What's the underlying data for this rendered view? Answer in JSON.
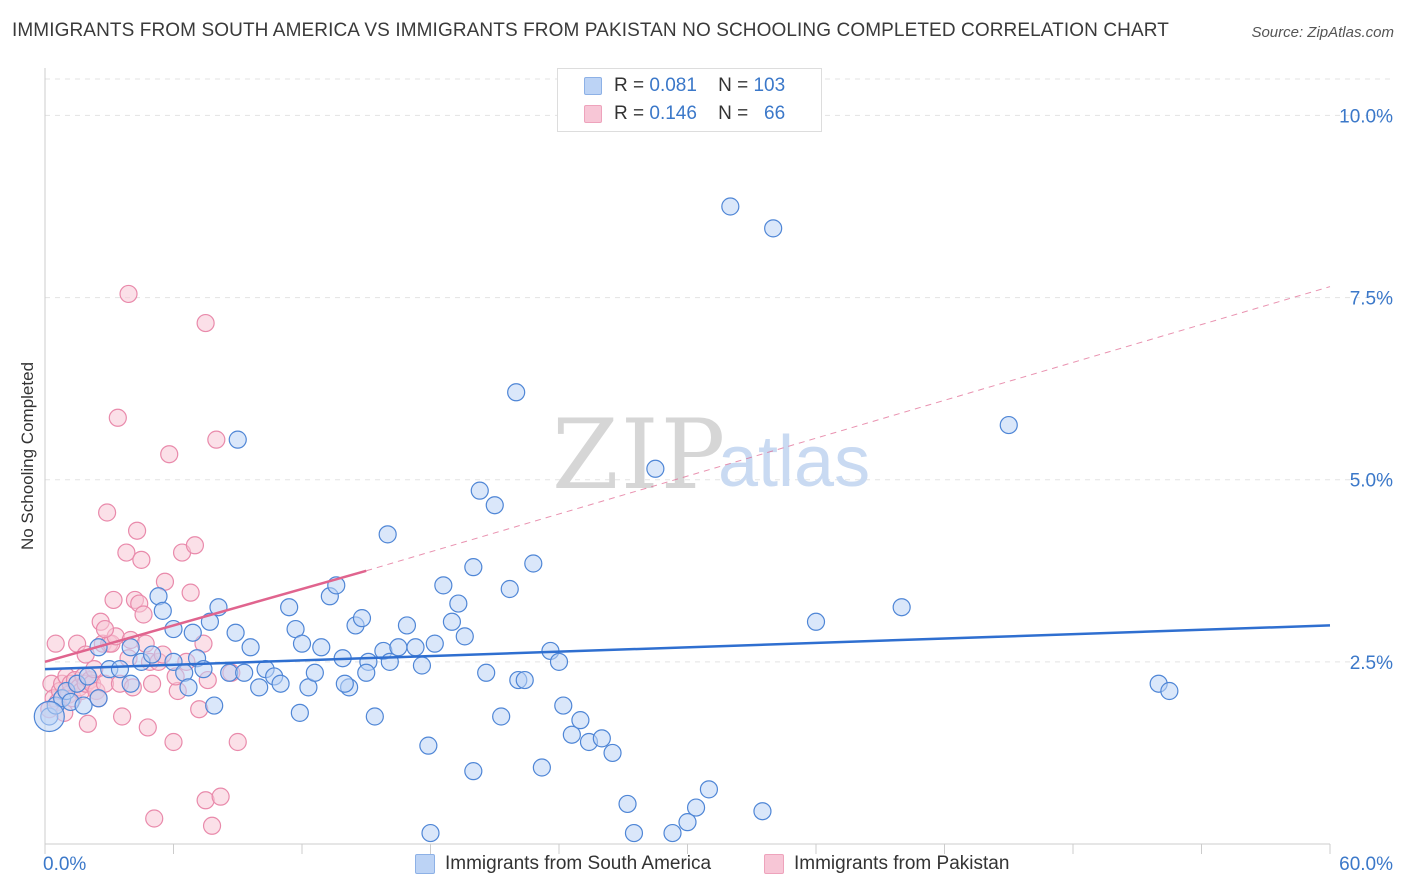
{
  "header": {
    "title": "IMMIGRANTS FROM SOUTH AMERICA VS IMMIGRANTS FROM PAKISTAN NO SCHOOLING COMPLETED CORRELATION CHART",
    "source": "Source: ZipAtlas.com"
  },
  "watermark": {
    "zip": "ZIP",
    "atlas": "atlas"
  },
  "legend": {
    "series": [
      {
        "name": "Immigrants from South America",
        "r_label": "R =",
        "r_value": "0.081",
        "n_label": "N =",
        "n_value": "103",
        "color": "#bcd3f5"
      },
      {
        "name": "Immigrants from Pakistan",
        "r_label": "R =",
        "r_value": "0.146",
        "n_label": "N =",
        "n_value": "66",
        "color": "#f7c6d6"
      }
    ]
  },
  "chart_data": {
    "type": "scatter",
    "title": "IMMIGRANTS FROM SOUTH AMERICA VS IMMIGRANTS FROM PAKISTAN NO SCHOOLING COMPLETED CORRELATION CHART",
    "xlabel": "",
    "ylabel": "No Schooling Completed",
    "xlim": [
      0,
      60
    ],
    "ylim": [
      0,
      10.5
    ],
    "x_tick_labels": [
      "0.0%",
      "60.0%"
    ],
    "y_ticks": [
      2.5,
      5.0,
      7.5,
      10.0
    ],
    "y_tick_labels": [
      "2.5%",
      "5.0%",
      "7.5%",
      "10.0%"
    ],
    "grid": true,
    "series": [
      {
        "name": "Immigrants from South America",
        "color": "#4f86d6",
        "fill": "#bcd3f5",
        "trend": {
          "x": [
            0,
            60
          ],
          "y": [
            2.4,
            3.0
          ],
          "style": "solid",
          "color": "#2f6fd0"
        },
        "points": [
          [
            0.2,
            1.75
          ],
          [
            0.5,
            1.9
          ],
          [
            0.8,
            2.0
          ],
          [
            1.0,
            2.1
          ],
          [
            1.2,
            1.95
          ],
          [
            1.5,
            2.2
          ],
          [
            1.8,
            1.9
          ],
          [
            2.0,
            2.3
          ],
          [
            2.5,
            2.0
          ],
          [
            3.0,
            2.4
          ],
          [
            3.5,
            2.4
          ],
          [
            4.0,
            2.7
          ],
          [
            4.5,
            2.5
          ],
          [
            5.0,
            2.6
          ],
          [
            5.3,
            3.4
          ],
          [
            5.5,
            3.2
          ],
          [
            6.0,
            2.5
          ],
          [
            6.5,
            2.35
          ],
          [
            6.7,
            2.15
          ],
          [
            6.9,
            2.9
          ],
          [
            7.1,
            2.55
          ],
          [
            7.4,
            2.4
          ],
          [
            7.7,
            3.05
          ],
          [
            7.9,
            1.9
          ],
          [
            8.1,
            3.25
          ],
          [
            8.6,
            2.35
          ],
          [
            8.9,
            2.9
          ],
          [
            9.3,
            2.35
          ],
          [
            9.6,
            2.7
          ],
          [
            10.0,
            2.15
          ],
          [
            10.3,
            2.4
          ],
          [
            10.7,
            2.3
          ],
          [
            11.0,
            2.2
          ],
          [
            11.4,
            3.25
          ],
          [
            11.7,
            2.95
          ],
          [
            11.9,
            1.8
          ],
          [
            12.3,
            2.15
          ],
          [
            12.6,
            2.35
          ],
          [
            12.9,
            2.7
          ],
          [
            13.3,
            3.4
          ],
          [
            13.6,
            3.55
          ],
          [
            13.9,
            2.55
          ],
          [
            14.2,
            2.15
          ],
          [
            14.5,
            3.0
          ],
          [
            14.8,
            3.1
          ],
          [
            15.1,
            2.5
          ],
          [
            15.4,
            1.75
          ],
          [
            15.8,
            2.65
          ],
          [
            16.1,
            2.5
          ],
          [
            16.5,
            2.7
          ],
          [
            16.9,
            3.0
          ],
          [
            17.3,
            2.7
          ],
          [
            17.6,
            2.45
          ],
          [
            17.9,
            1.35
          ],
          [
            18.2,
            2.75
          ],
          [
            18.6,
            3.55
          ],
          [
            19.0,
            3.05
          ],
          [
            19.3,
            3.3
          ],
          [
            19.6,
            2.85
          ],
          [
            20.0,
            1.0
          ],
          [
            20.3,
            4.85
          ],
          [
            20.6,
            2.35
          ],
          [
            21.0,
            4.65
          ],
          [
            21.3,
            1.75
          ],
          [
            21.7,
            3.5
          ],
          [
            22.1,
            2.25
          ],
          [
            22.4,
            2.25
          ],
          [
            22.8,
            3.85
          ],
          [
            23.2,
            1.05
          ],
          [
            23.6,
            2.65
          ],
          [
            24.2,
            1.9
          ],
          [
            24.6,
            1.5
          ],
          [
            25.0,
            1.7
          ],
          [
            25.4,
            1.4
          ],
          [
            26.0,
            1.45
          ],
          [
            27.2,
            0.55
          ],
          [
            27.5,
            0.15
          ],
          [
            28.5,
            5.15
          ],
          [
            29.3,
            0.15
          ],
          [
            30.0,
            0.3
          ],
          [
            30.4,
            0.5
          ],
          [
            31.0,
            0.75
          ],
          [
            32.0,
            8.75
          ],
          [
            33.5,
            0.45
          ],
          [
            34.0,
            8.45
          ],
          [
            36.0,
            3.05
          ],
          [
            40.0,
            3.25
          ],
          [
            45.0,
            5.75
          ],
          [
            52.0,
            2.2
          ],
          [
            52.5,
            2.1
          ],
          [
            18.0,
            0.15
          ],
          [
            22.0,
            6.2
          ],
          [
            9.0,
            5.55
          ],
          [
            16.0,
            4.25
          ],
          [
            20.0,
            3.8
          ],
          [
            12.0,
            2.75
          ],
          [
            14.0,
            2.2
          ],
          [
            6.0,
            2.95
          ],
          [
            4.0,
            2.2
          ],
          [
            26.5,
            1.25
          ],
          [
            15.0,
            2.35
          ],
          [
            24.0,
            2.5
          ],
          [
            2.5,
            2.7
          ]
        ]
      },
      {
        "name": "Immigrants from Pakistan",
        "color": "#e98aab",
        "fill": "#f7c6d6",
        "trend": {
          "x": [
            0,
            15
          ],
          "y": [
            2.5,
            3.75
          ],
          "style": "solid",
          "color": "#e0648e"
        },
        "trend_extension": {
          "x": [
            15,
            60
          ],
          "y": [
            3.75,
            7.65
          ],
          "style": "dashed",
          "color": "#e0648e"
        },
        "points": [
          [
            0.2,
            1.85
          ],
          [
            0.3,
            2.2
          ],
          [
            0.4,
            2.0
          ],
          [
            0.5,
            2.75
          ],
          [
            0.6,
            1.95
          ],
          [
            0.7,
            2.1
          ],
          [
            0.8,
            2.2
          ],
          [
            0.9,
            1.8
          ],
          [
            1.0,
            2.3
          ],
          [
            1.1,
            2.05
          ],
          [
            1.2,
            2.2
          ],
          [
            1.3,
            2.0
          ],
          [
            1.4,
            2.25
          ],
          [
            1.5,
            2.75
          ],
          [
            1.6,
            2.15
          ],
          [
            1.7,
            2.1
          ],
          [
            1.8,
            2.3
          ],
          [
            1.9,
            2.2
          ],
          [
            2.0,
            1.65
          ],
          [
            2.1,
            2.25
          ],
          [
            2.2,
            2.2
          ],
          [
            2.3,
            2.4
          ],
          [
            2.4,
            2.1
          ],
          [
            2.5,
            2.0
          ],
          [
            2.6,
            3.05
          ],
          [
            2.7,
            2.75
          ],
          [
            2.8,
            2.2
          ],
          [
            2.9,
            4.55
          ],
          [
            3.0,
            2.75
          ],
          [
            3.1,
            2.75
          ],
          [
            3.2,
            3.35
          ],
          [
            3.3,
            2.85
          ],
          [
            3.4,
            5.85
          ],
          [
            3.5,
            2.2
          ],
          [
            3.6,
            1.75
          ],
          [
            3.8,
            4.0
          ],
          [
            3.9,
            2.55
          ],
          [
            4.0,
            2.8
          ],
          [
            4.1,
            2.15
          ],
          [
            4.2,
            3.35
          ],
          [
            4.3,
            4.3
          ],
          [
            4.4,
            3.3
          ],
          [
            4.5,
            3.9
          ],
          [
            4.6,
            3.15
          ],
          [
            4.7,
            2.75
          ],
          [
            4.8,
            1.6
          ],
          [
            4.9,
            2.5
          ],
          [
            5.0,
            2.2
          ],
          [
            5.1,
            0.35
          ],
          [
            5.3,
            2.5
          ],
          [
            5.5,
            2.6
          ],
          [
            5.6,
            3.6
          ],
          [
            5.8,
            5.35
          ],
          [
            6.0,
            1.4
          ],
          [
            6.2,
            2.1
          ],
          [
            6.4,
            4.0
          ],
          [
            6.6,
            2.5
          ],
          [
            6.8,
            3.45
          ],
          [
            7.0,
            4.1
          ],
          [
            7.2,
            1.85
          ],
          [
            7.4,
            2.75
          ],
          [
            7.5,
            0.6
          ],
          [
            7.6,
            2.25
          ],
          [
            7.8,
            0.25
          ],
          [
            8.0,
            5.55
          ],
          [
            8.2,
            0.65
          ]
        ],
        "outliers": [
          [
            3.9,
            7.55
          ],
          [
            7.5,
            7.15
          ],
          [
            9.0,
            1.4
          ],
          [
            8.7,
            2.35
          ],
          [
            6.1,
            2.3
          ],
          [
            2.8,
            2.95
          ],
          [
            1.9,
            2.6
          ]
        ]
      }
    ]
  },
  "axis_labels": {
    "x_left": "0.0%",
    "x_right": "60.0%",
    "y_label": "No Schooling Completed"
  }
}
